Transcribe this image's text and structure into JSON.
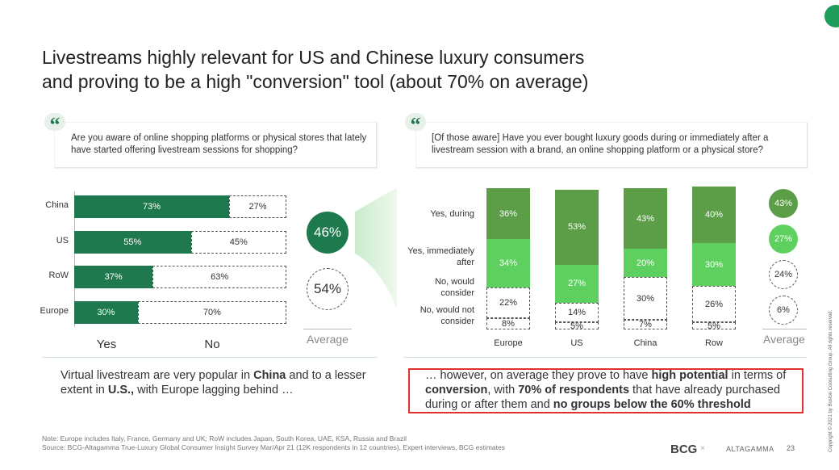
{
  "title": [
    "Livestreams highly relevant for US and Chinese luxury consumers",
    "and proving to be a high \"conversion\" tool (about 70% on average)"
  ],
  "quotes": [
    "Are you aware of online shopping platforms or physical stores that lately have started offering livestream sessions for shopping?",
    "[Of those aware] Have you ever bought luxury goods during or immediately after a livestream session with a brand, an online shopping platform or a physical store?"
  ],
  "chart_data": [
    {
      "type": "bar",
      "orientation": "horizontal",
      "stacked": true,
      "xlim": [
        0,
        100
      ],
      "categories": [
        "China",
        "US",
        "RoW",
        "Europe"
      ],
      "series": [
        {
          "name": "Yes",
          "color": "#1e7a4e",
          "values": [
            73,
            55,
            37,
            30
          ],
          "value_labels": [
            "73%",
            "55%",
            "37%",
            "30%"
          ]
        },
        {
          "name": "No",
          "color": "#ffffff",
          "values": [
            27,
            45,
            63,
            70
          ],
          "value_labels": [
            "27%",
            "45%",
            "63%",
            "70%"
          ]
        }
      ],
      "average": {
        "label": "Average",
        "values": [
          46,
          54
        ],
        "value_labels": [
          "46%",
          "54%"
        ],
        "colors": [
          "#1e7a4e",
          "#ffffff"
        ]
      }
    },
    {
      "type": "bar",
      "orientation": "vertical",
      "stacked": true,
      "ylim": [
        0,
        100
      ],
      "categories": [
        "Europe",
        "US",
        "China",
        "Row"
      ],
      "series": [
        {
          "name": "No, would not consider",
          "color": "#ffffff",
          "values": [
            8,
            5,
            7,
            5
          ],
          "value_labels": [
            "8%",
            "5%",
            "7%",
            "5%"
          ]
        },
        {
          "name": "No, would consider",
          "color": "#ffffff",
          "values": [
            22,
            14,
            30,
            26
          ],
          "value_labels": [
            "22%",
            "14%",
            "30%",
            "26%"
          ]
        },
        {
          "name": "Yes, immediately after",
          "color": "#5dd05f",
          "values": [
            34,
            27,
            20,
            30
          ],
          "value_labels": [
            "34%",
            "27%",
            "20%",
            "30%"
          ]
        },
        {
          "name": "Yes, during",
          "color": "#5c9e47",
          "values": [
            36,
            53,
            43,
            40
          ],
          "value_labels": [
            "36%",
            "53%",
            "43%",
            "40%"
          ]
        }
      ],
      "average": {
        "label": "Average",
        "values": [
          43,
          27,
          24,
          6
        ],
        "value_labels": [
          "43%",
          "27%",
          "24%",
          "6%"
        ],
        "colors": [
          "#5c9e47",
          "#5dd05f",
          "#ffffff",
          "#ffffff"
        ]
      }
    }
  ],
  "summaries": [
    [
      {
        "text": "Virtual livestream are very popular in "
      },
      {
        "text": "China",
        "bold": true
      },
      {
        "text": " and to a lesser extent in "
      },
      {
        "text": "U.S.,",
        "bold": true
      },
      {
        "text": " with Europe lagging behind …"
      }
    ],
    [
      {
        "text": "… however, on average they prove to have "
      },
      {
        "text": "high potential",
        "bold": true
      },
      {
        "text": " in terms of "
      },
      {
        "text": "conversion",
        "bold": true
      },
      {
        "text": ", with "
      },
      {
        "text": "70% of respondents",
        "bold": true
      },
      {
        "text": " that have already purchased during or after them and "
      },
      {
        "text": "no groups below the 60% threshold",
        "bold": true
      }
    ]
  ],
  "note": "Note: Europe includes Italy, France, Germany and UK; RoW includes Japan, South Korea, UAE, KSA, Russia and Brazil",
  "source": "Source: BCG-Altagamma True-Luxury Global Consumer Insight Survey Mar/Apr 21 (12K respondents in 12 countries), Expert interviews, BCG estimates",
  "logos": [
    "BCG",
    "ALTAGAMMA"
  ],
  "page_number": "23",
  "copyright": "Copyright © 2021 by Boston Consulting Group. All rights reserved."
}
